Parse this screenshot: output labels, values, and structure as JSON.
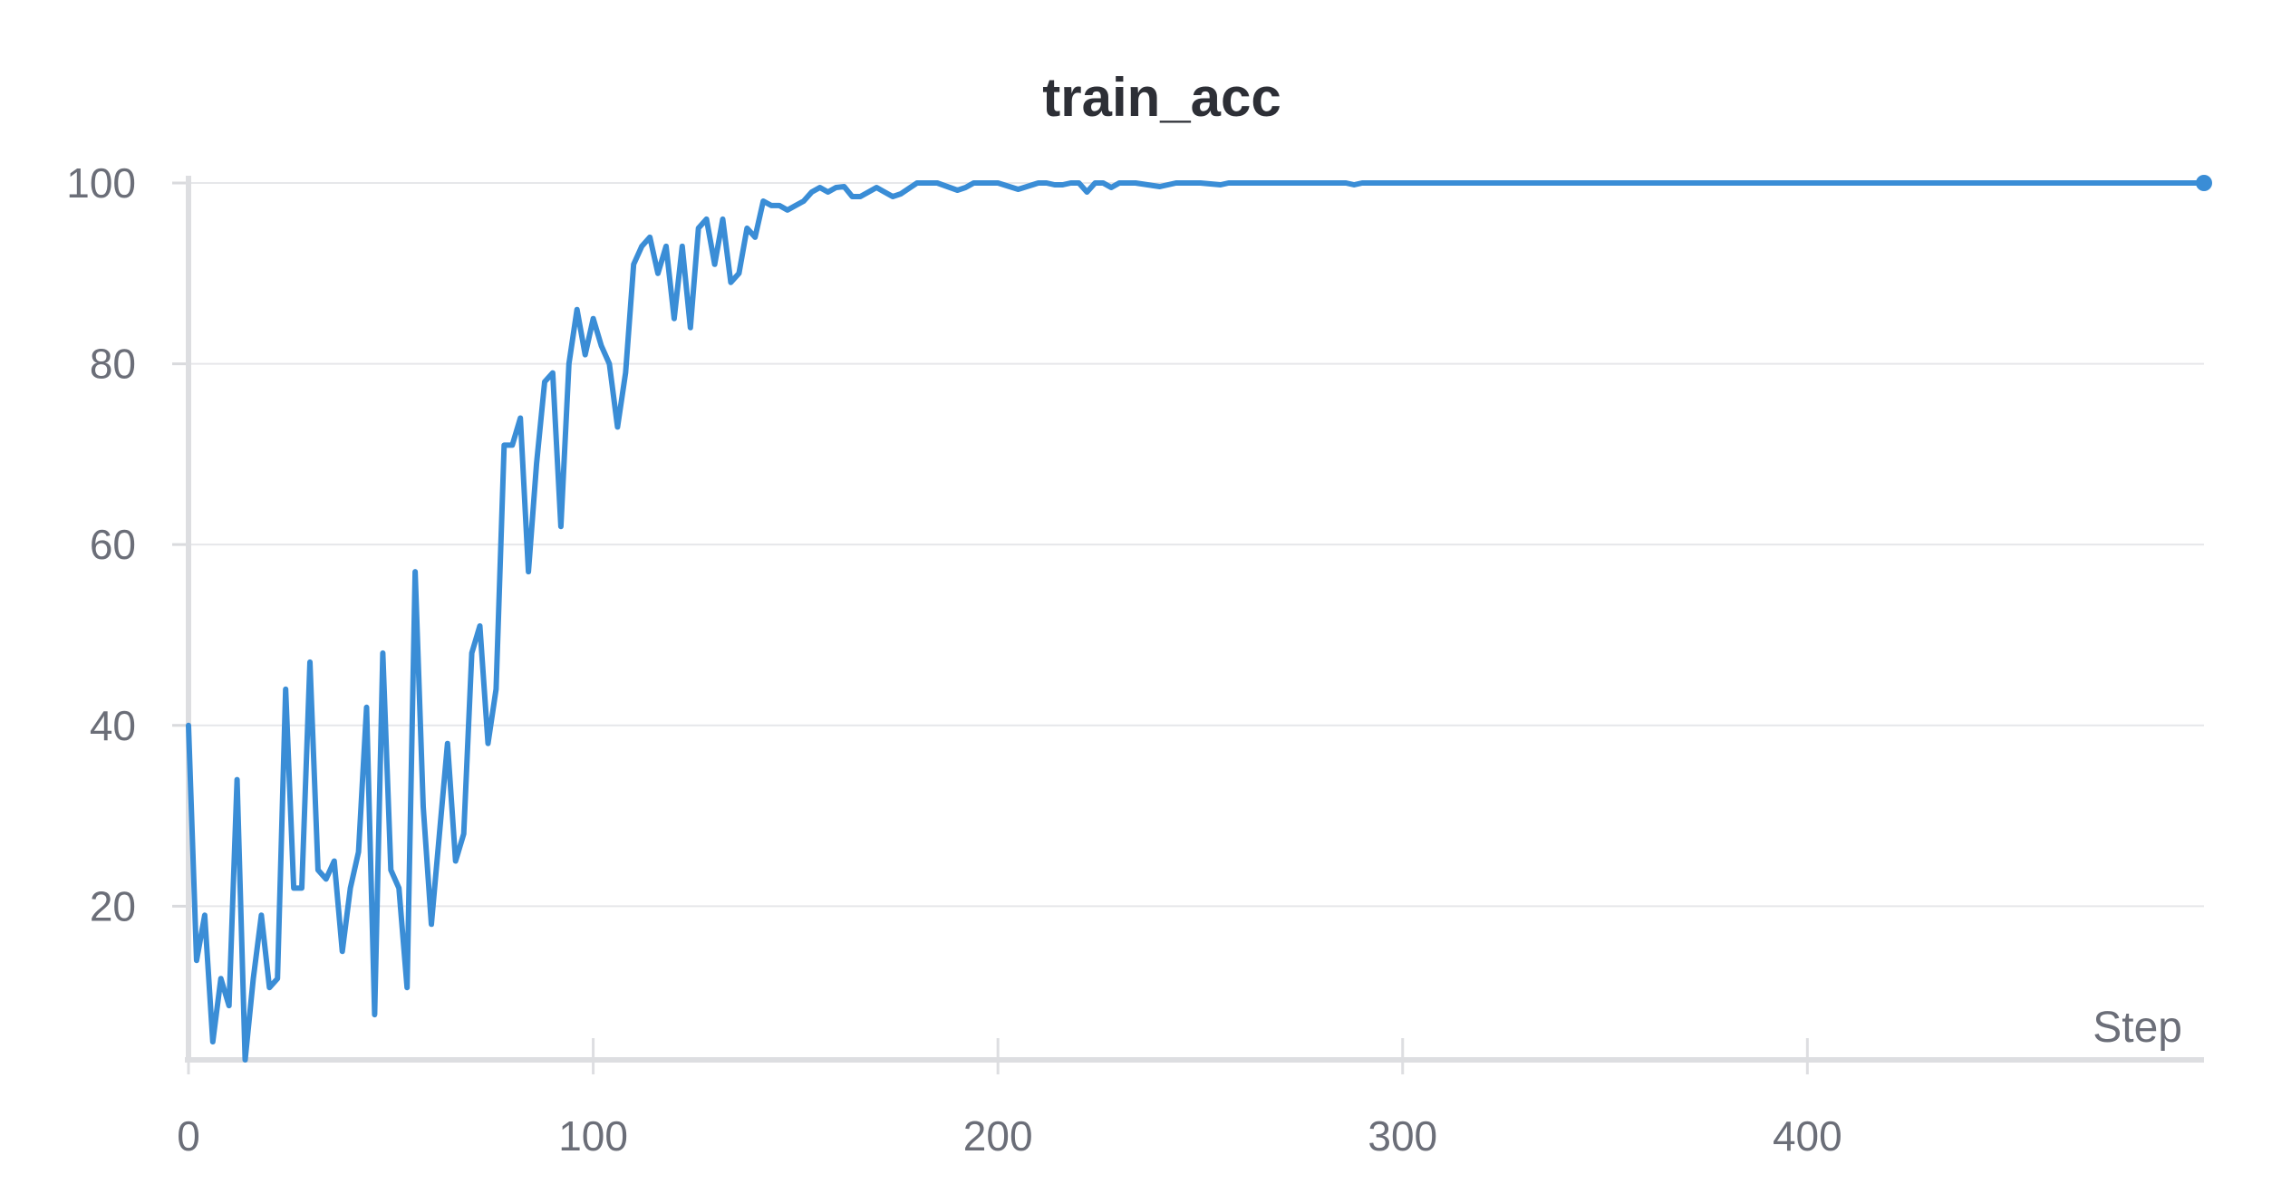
{
  "chart_data": {
    "type": "line",
    "title": "train_acc",
    "xlabel": "Step",
    "ylabel": "",
    "xlim": [
      0,
      498
    ],
    "ylim": [
      3,
      100
    ],
    "x_ticks": [
      0,
      100,
      200,
      300,
      400
    ],
    "y_ticks": [
      20,
      40,
      60,
      80,
      100
    ],
    "grid": true,
    "legend": "none",
    "line_color": "#3a8dd6",
    "series": [
      {
        "x": [
          0,
          2,
          4,
          6,
          8,
          10,
          12,
          14,
          16,
          18,
          20,
          22,
          24,
          26,
          28,
          30,
          32,
          34,
          36,
          38,
          40,
          42,
          44,
          46,
          48,
          50,
          52,
          54,
          56,
          58,
          60,
          62,
          64,
          66,
          68,
          70,
          72,
          74,
          76,
          78,
          80,
          82,
          84,
          86,
          88,
          90,
          92,
          94,
          96,
          98,
          100,
          102,
          104,
          106,
          108,
          110,
          112,
          114,
          116,
          118,
          120,
          122,
          124,
          126,
          128,
          130,
          132,
          134,
          136,
          138,
          140,
          142,
          144,
          146,
          148,
          150,
          152,
          154,
          156,
          158,
          160,
          162,
          164,
          166,
          168,
          170,
          172,
          174,
          176,
          178,
          180,
          185,
          190,
          192,
          194,
          196,
          200,
          205,
          210,
          212,
          214,
          216,
          218,
          220,
          222,
          224,
          226,
          228,
          230,
          232,
          234,
          240,
          244,
          246,
          250,
          255,
          257,
          260,
          270,
          280,
          286,
          288,
          290,
          300,
          350,
          400,
          450,
          498
        ],
        "values": [
          40,
          14,
          19,
          5,
          12,
          9,
          34,
          3,
          12,
          19,
          11,
          12,
          44,
          22,
          22,
          47,
          24,
          23,
          25,
          15,
          22,
          26,
          42,
          8,
          48,
          24,
          22,
          11,
          57,
          31,
          18,
          28,
          38,
          25,
          28,
          48,
          51,
          38,
          44,
          71,
          71,
          74,
          57,
          69,
          78,
          79,
          62,
          80,
          86,
          81,
          85,
          82,
          80,
          73,
          79,
          91,
          93,
          94,
          90,
          93,
          85,
          93,
          84,
          95,
          96,
          91,
          96,
          89,
          90,
          95,
          94,
          98,
          97.5,
          97.5,
          97,
          97.5,
          98,
          99,
          99.5,
          99,
          99.5,
          99.6,
          98.5,
          98.5,
          99,
          99.5,
          99,
          98.5,
          98.8,
          99.4,
          100,
          100,
          99.2,
          99.5,
          100,
          100,
          100,
          99.3,
          100,
          100,
          99.8,
          99.8,
          100,
          100,
          99,
          100,
          100,
          99.5,
          100,
          100,
          100,
          99.6,
          100,
          100,
          100,
          99.8,
          100,
          100,
          100,
          100,
          100,
          99.8,
          100,
          100,
          100,
          100,
          100,
          100
        ]
      }
    ]
  }
}
